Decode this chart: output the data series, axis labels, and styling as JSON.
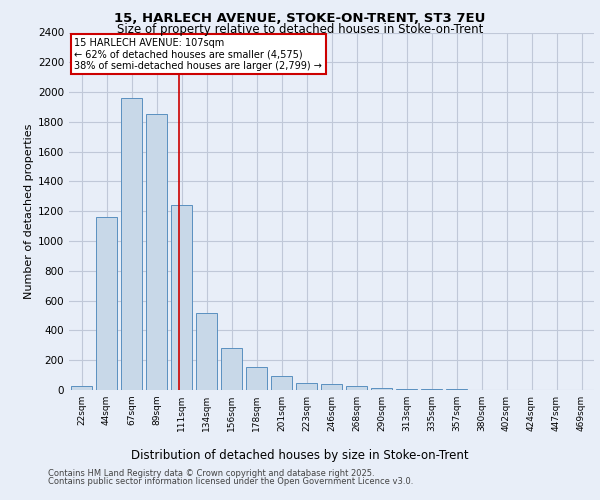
{
  "title1": "15, HARLECH AVENUE, STOKE-ON-TRENT, ST3 7EU",
  "title2": "Size of property relative to detached houses in Stoke-on-Trent",
  "xlabel": "Distribution of detached houses by size in Stoke-on-Trent",
  "ylabel": "Number of detached properties",
  "categories": [
    "22sqm",
    "44sqm",
    "67sqm",
    "89sqm",
    "111sqm",
    "134sqm",
    "156sqm",
    "178sqm",
    "201sqm",
    "223sqm",
    "246sqm",
    "268sqm",
    "290sqm",
    "313sqm",
    "335sqm",
    "357sqm",
    "380sqm",
    "402sqm",
    "424sqm",
    "447sqm",
    "469sqm"
  ],
  "values": [
    30,
    1160,
    1960,
    1850,
    1240,
    520,
    280,
    155,
    95,
    50,
    40,
    30,
    15,
    10,
    5,
    4,
    3,
    3,
    2,
    2,
    2
  ],
  "bar_color": "#c8d8e8",
  "bar_edge_color": "#5a90c0",
  "grid_color": "#c0c8d8",
  "background_color": "#e8eef8",
  "annotation_line1": "15 HARLECH AVENUE: 107sqm",
  "annotation_line2": "← 62% of detached houses are smaller (4,575)",
  "annotation_line3": "38% of semi-detached houses are larger (2,799) →",
  "annotation_box_color": "#ffffff",
  "annotation_border_color": "#cc0000",
  "vline_color": "#cc0000",
  "footer1": "Contains HM Land Registry data © Crown copyright and database right 2025.",
  "footer2": "Contains public sector information licensed under the Open Government Licence v3.0.",
  "ylim": [
    0,
    2400
  ],
  "yticks": [
    0,
    200,
    400,
    600,
    800,
    1000,
    1200,
    1400,
    1600,
    1800,
    2000,
    2200,
    2400
  ]
}
